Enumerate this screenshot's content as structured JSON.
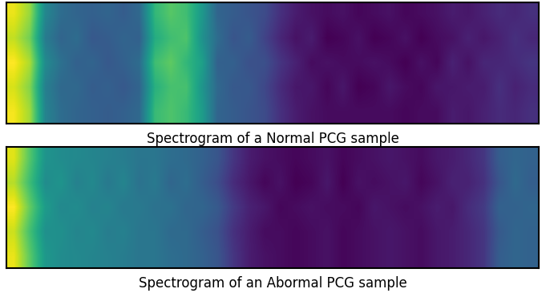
{
  "chart_data": [
    {
      "type": "heatmap",
      "title": "Spectrogram of a Normal PCG sample",
      "color": "viridis",
      "tick_labels": false,
      "cells": [
        [
          0.88,
          0.8,
          0.55,
          0.48,
          0.46,
          0.45,
          0.46,
          0.44,
          0.47,
          0.68,
          0.73,
          0.7,
          0.6,
          0.46,
          0.44,
          0.42,
          0.4,
          0.34,
          0.3,
          0.28,
          0.27,
          0.28,
          0.26,
          0.27,
          0.28,
          0.26,
          0.27,
          0.28,
          0.3,
          0.29,
          0.31,
          0.33,
          0.32,
          0.34
        ],
        [
          0.84,
          0.76,
          0.52,
          0.46,
          0.48,
          0.43,
          0.44,
          0.46,
          0.45,
          0.65,
          0.7,
          0.72,
          0.58,
          0.48,
          0.42,
          0.44,
          0.38,
          0.32,
          0.28,
          0.3,
          0.25,
          0.26,
          0.28,
          0.25,
          0.26,
          0.28,
          0.25,
          0.27,
          0.28,
          0.31,
          0.29,
          0.31,
          0.34,
          0.32
        ],
        [
          0.9,
          0.82,
          0.56,
          0.49,
          0.45,
          0.46,
          0.43,
          0.45,
          0.48,
          0.7,
          0.74,
          0.68,
          0.62,
          0.45,
          0.45,
          0.41,
          0.41,
          0.35,
          0.31,
          0.27,
          0.28,
          0.27,
          0.27,
          0.28,
          0.27,
          0.25,
          0.28,
          0.26,
          0.31,
          0.28,
          0.32,
          0.32,
          0.33,
          0.35
        ],
        [
          0.86,
          0.78,
          0.53,
          0.47,
          0.47,
          0.44,
          0.45,
          0.43,
          0.46,
          0.66,
          0.71,
          0.71,
          0.59,
          0.47,
          0.43,
          0.43,
          0.39,
          0.33,
          0.29,
          0.29,
          0.26,
          0.29,
          0.25,
          0.26,
          0.29,
          0.27,
          0.26,
          0.29,
          0.29,
          0.3,
          0.3,
          0.34,
          0.31,
          0.33
        ],
        [
          0.89,
          0.81,
          0.54,
          0.48,
          0.46,
          0.45,
          0.44,
          0.45,
          0.47,
          0.69,
          0.72,
          0.69,
          0.61,
          0.46,
          0.44,
          0.42,
          0.4,
          0.34,
          0.3,
          0.28,
          0.27,
          0.27,
          0.27,
          0.27,
          0.27,
          0.26,
          0.27,
          0.27,
          0.3,
          0.29,
          0.31,
          0.33,
          0.32,
          0.34
        ]
      ]
    },
    {
      "type": "heatmap",
      "title": "Spectrogram of an Abormal PCG sample",
      "color": "viridis",
      "tick_labels": false,
      "cells": [
        [
          0.86,
          0.72,
          0.58,
          0.56,
          0.55,
          0.54,
          0.53,
          0.52,
          0.5,
          0.5,
          0.48,
          0.47,
          0.45,
          0.42,
          0.35,
          0.3,
          0.28,
          0.27,
          0.26,
          0.27,
          0.28,
          0.26,
          0.27,
          0.28,
          0.29,
          0.28,
          0.27,
          0.29,
          0.3,
          0.32,
          0.35,
          0.44,
          0.46,
          0.45
        ],
        [
          0.82,
          0.69,
          0.56,
          0.58,
          0.53,
          0.55,
          0.51,
          0.54,
          0.49,
          0.51,
          0.46,
          0.48,
          0.44,
          0.4,
          0.33,
          0.29,
          0.26,
          0.28,
          0.25,
          0.26,
          0.29,
          0.25,
          0.28,
          0.27,
          0.28,
          0.29,
          0.26,
          0.28,
          0.31,
          0.31,
          0.34,
          0.42,
          0.47,
          0.44
        ],
        [
          0.89,
          0.74,
          0.6,
          0.55,
          0.56,
          0.53,
          0.54,
          0.51,
          0.51,
          0.49,
          0.49,
          0.46,
          0.46,
          0.43,
          0.36,
          0.31,
          0.29,
          0.26,
          0.27,
          0.28,
          0.27,
          0.27,
          0.26,
          0.29,
          0.28,
          0.27,
          0.28,
          0.3,
          0.29,
          0.33,
          0.36,
          0.45,
          0.45,
          0.46
        ],
        [
          0.84,
          0.7,
          0.57,
          0.57,
          0.54,
          0.55,
          0.52,
          0.53,
          0.5,
          0.5,
          0.47,
          0.47,
          0.44,
          0.41,
          0.34,
          0.3,
          0.27,
          0.27,
          0.26,
          0.27,
          0.28,
          0.26,
          0.27,
          0.28,
          0.29,
          0.28,
          0.27,
          0.29,
          0.3,
          0.32,
          0.35,
          0.43,
          0.46,
          0.45
        ],
        [
          0.87,
          0.73,
          0.59,
          0.56,
          0.55,
          0.54,
          0.53,
          0.52,
          0.5,
          0.5,
          0.48,
          0.47,
          0.45,
          0.42,
          0.35,
          0.3,
          0.28,
          0.27,
          0.26,
          0.27,
          0.28,
          0.26,
          0.27,
          0.28,
          0.29,
          0.28,
          0.27,
          0.29,
          0.3,
          0.32,
          0.35,
          0.44,
          0.46,
          0.45
        ]
      ]
    }
  ]
}
